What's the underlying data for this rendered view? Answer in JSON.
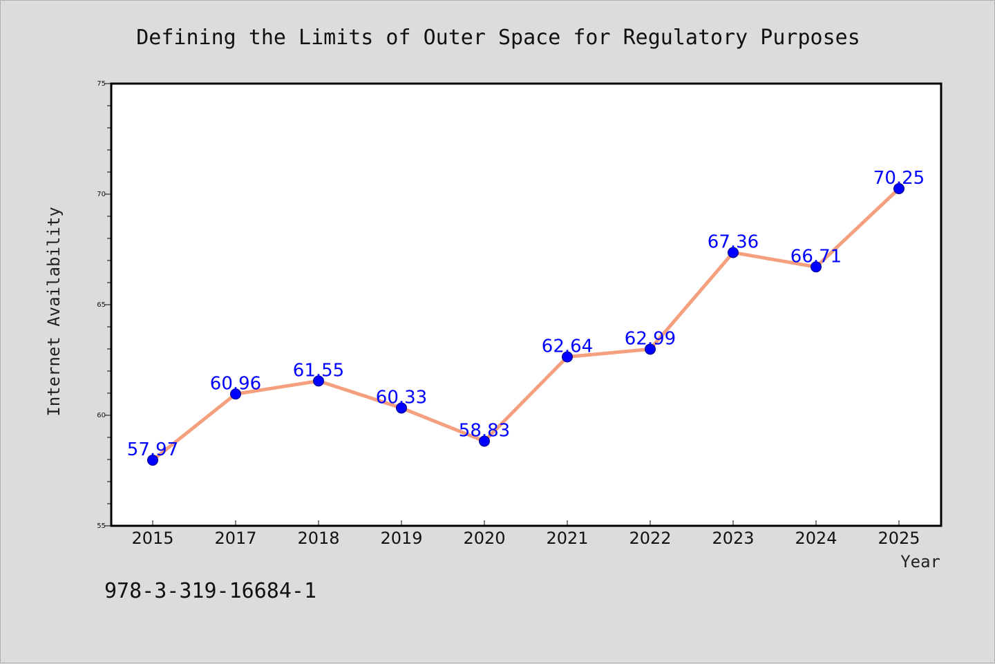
{
  "figure": {
    "footnote": "978-3-319-16684-1"
  },
  "colors": {
    "background": "#dcdcdc",
    "plot_area": "#ffffff",
    "line": "#f4a07e",
    "marker": "#0000ff",
    "marker_edge": "#000080",
    "data_label": "#0000ff"
  },
  "chart_data": {
    "type": "line",
    "title": "Defining the Limits of Outer Space for Regulatory Purposes",
    "xlabel": "Year",
    "ylabel": "Internet Availability",
    "categories": [
      "2015",
      "2017",
      "2018",
      "2019",
      "2020",
      "2021",
      "2022",
      "2023",
      "2024",
      "2025"
    ],
    "series": [
      {
        "values": [
          57.97,
          60.96,
          61.55,
          60.33,
          58.83,
          62.64,
          62.99,
          67.36,
          66.71,
          70.25
        ],
        "labels": [
          "57.97",
          "60.96",
          "61.55",
          "60.33",
          "58.83",
          "62.64",
          "62.99",
          "67.36",
          "66.71",
          "70.25"
        ]
      }
    ],
    "ylim": [
      55,
      75
    ],
    "yticks": [
      "55",
      "60",
      "65",
      "70",
      "75"
    ],
    "grid": false,
    "legend": "none"
  }
}
